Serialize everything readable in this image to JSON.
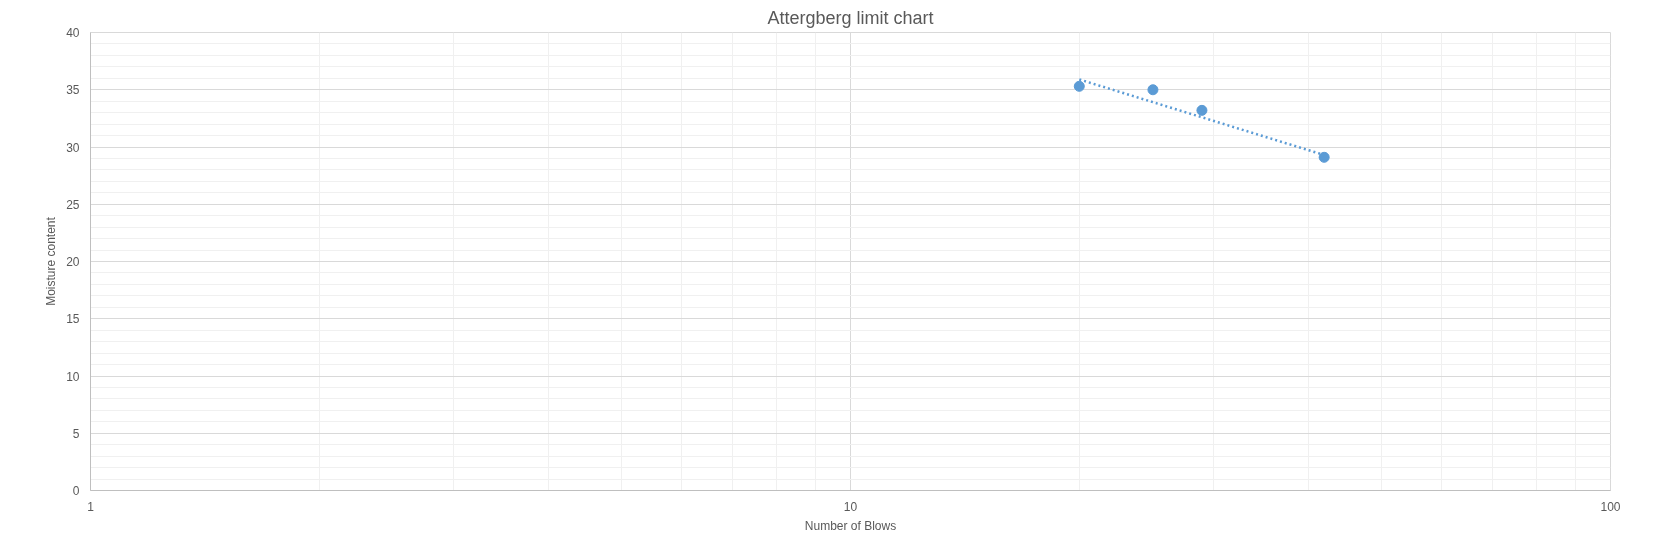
{
  "chart_data": {
    "type": "scatter",
    "title": "Attergberg limit chart",
    "xlabel": "Number of Blows",
    "ylabel": "Moisture content",
    "log": "x",
    "xlim": [
      1,
      100
    ],
    "xticks": [
      1,
      10,
      100
    ],
    "ylim": [
      0,
      40
    ],
    "yticks": [
      0,
      5,
      10,
      15,
      20,
      25,
      30,
      35,
      40
    ],
    "grid": true,
    "series": [
      {
        "color": "#5b9bd5",
        "marker": "circle",
        "x": [
          20,
          25,
          29,
          42
        ],
        "values": [
          35.3,
          35.0,
          33.2,
          29.1
        ]
      },
      {
        "type": "line",
        "color": "#5b9bd5",
        "line_style": "dotted",
        "marker": "none",
        "x": [
          20,
          42
        ],
        "values": [
          35.9,
          29.3
        ]
      }
    ]
  }
}
